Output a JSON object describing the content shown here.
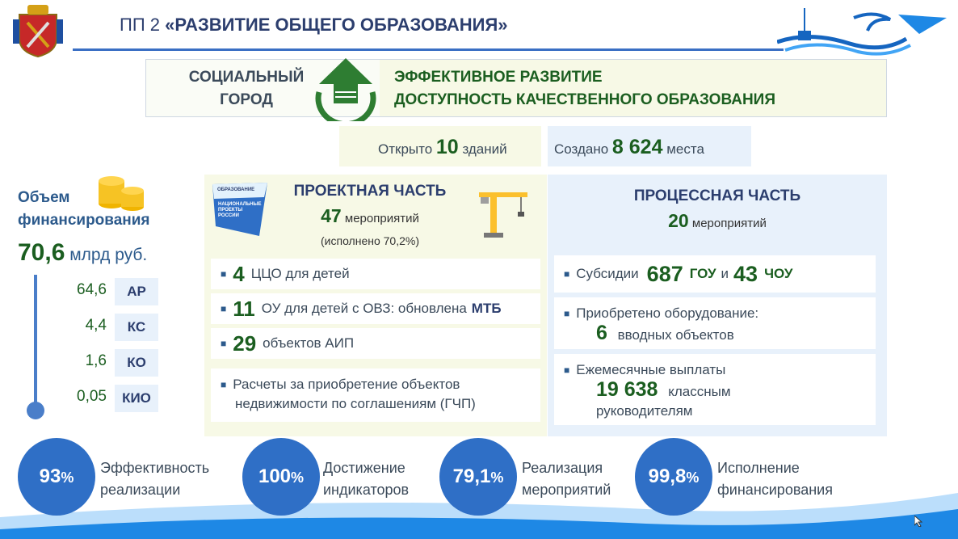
{
  "header": {
    "prefix": "ПП 2",
    "title": "«РАЗВИТИЕ ОБЩЕГО ОБРАЗОВАНИЯ»"
  },
  "banner": {
    "left_line1": "СОЦИАЛЬНЫЙ",
    "left_line2": "ГОРОД",
    "right_line1": "ЭФФЕКТИВНОЕ РАЗВИТИЕ",
    "right_line2": "ДОСТУПНОСТЬ КАЧЕСТВЕННОГО ОБРАЗОВАНИЯ"
  },
  "stats": {
    "opened_pre": "Открыто",
    "opened_num": "10",
    "opened_post": "зданий",
    "created_pre": "Создано",
    "created_num": "8 624",
    "created_post": "места"
  },
  "funding": {
    "label_line1": "Объем",
    "label_line2": "финансирования",
    "total_num": "70,6",
    "total_unit": "млрд руб.",
    "items": [
      {
        "value": "64,6",
        "tag": "АР"
      },
      {
        "value": "4,4",
        "tag": "КС"
      },
      {
        "value": "1,6",
        "tag": "КО"
      },
      {
        "value": "0,05",
        "tag": "КИО"
      }
    ]
  },
  "project": {
    "title": "ПРОЕКТНАЯ ЧАСТЬ",
    "count_num": "47",
    "count_label": "мероприятий",
    "done": "(исполнено 70,2%)",
    "logo_line1": "ОБРАЗОВАНИЕ",
    "logo_line2": "НАЦИОНАЛЬНЫЕ",
    "logo_line3": "ПРОЕКТЫ",
    "logo_line4": "РОССИИ",
    "rows": [
      {
        "num": "4",
        "text": "ЦЦО для детей"
      },
      {
        "num": "11",
        "text": "ОУ для детей с ОВЗ:  обновлена",
        "bold": "МТБ"
      },
      {
        "num": "29",
        "text": "объектов АИП"
      }
    ],
    "gchp_line1": "Расчеты за приобретение объектов",
    "gchp_line2": "недвижимости по соглашениям (ГЧП)"
  },
  "process": {
    "title": "ПРОЦЕССНАЯ ЧАСТЬ",
    "count_num": "20",
    "count_label": "мероприятий",
    "subsidy_pre": "Субсидии",
    "subsidy_num1": "687",
    "subsidy_mid": "ГОУ",
    "subsidy_and": "и",
    "subsidy_num2": "43",
    "subsidy_post": "ЧОУ",
    "equip_line1": "Приобретено оборудование:",
    "equip_num": "6",
    "equip_line2": "вводных объектов",
    "pay_line1": "Ежемесячные выплаты",
    "pay_num": "19 638",
    "pay_line2": "классным",
    "pay_line3": "руководителям"
  },
  "kpis": [
    {
      "num": "93",
      "pct": "%",
      "line1": "Эффективность",
      "line2": "реализации"
    },
    {
      "num": "100",
      "pct": "%",
      "line1": "Достижение",
      "line2": "индикаторов"
    },
    {
      "num": "79,1",
      "pct": "%",
      "line1": "Реализация",
      "line2": "мероприятий"
    },
    {
      "num": "99,8",
      "pct": "%",
      "line1": "Исполнение",
      "line2": "финансирования"
    }
  ],
  "colors": {
    "accent_blue": "#2f6fc6",
    "dark_green": "#1b5e20",
    "navy": "#2c3e6e"
  }
}
